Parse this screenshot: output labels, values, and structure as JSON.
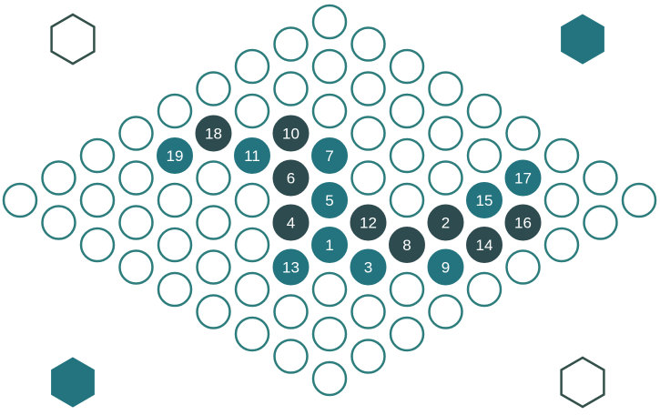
{
  "colors": {
    "empty_stroke": "#2e7d7d",
    "empty_fill": "#ffffff",
    "teal": "#23747f",
    "dark": "#2e4b4f",
    "hex_outline": "#34504a",
    "label": "#ffffff"
  },
  "hex_markers": [
    {
      "name": "hex-top-left-outline",
      "corner": "top-left",
      "style": "outline"
    },
    {
      "name": "hex-top-right-filled",
      "corner": "top-right",
      "style": "filled"
    },
    {
      "name": "hex-bottom-left-filled",
      "corner": "bottom-left",
      "style": "filled"
    },
    {
      "name": "hex-bottom-right-outline",
      "corner": "bottom-right",
      "style": "outline"
    }
  ],
  "board": {
    "size": 9,
    "stones": [
      {
        "label": "1",
        "color": "teal",
        "row": 5,
        "col": 5
      },
      {
        "label": "2",
        "color": "dark",
        "row": 6,
        "col": 3
      },
      {
        "label": "3",
        "color": "teal",
        "row": 6,
        "col": 5
      },
      {
        "label": "4",
        "color": "dark",
        "row": 4,
        "col": 5
      },
      {
        "label": "5",
        "color": "teal",
        "row": 4,
        "col": 4
      },
      {
        "label": "6",
        "color": "dark",
        "row": 3,
        "col": 4
      },
      {
        "label": "7",
        "color": "teal",
        "row": 3,
        "col": 3
      },
      {
        "label": "8",
        "color": "dark",
        "row": 6,
        "col": 4
      },
      {
        "label": "9",
        "color": "teal",
        "row": 7,
        "col": 4
      },
      {
        "label": "10",
        "color": "dark",
        "row": 2,
        "col": 3
      },
      {
        "label": "11",
        "color": "teal",
        "row": 2,
        "col": 4
      },
      {
        "label": "12",
        "color": "dark",
        "row": 5,
        "col": 4
      },
      {
        "label": "13",
        "color": "teal",
        "row": 5,
        "col": 6
      },
      {
        "label": "14",
        "color": "dark",
        "row": 7,
        "col": 3
      },
      {
        "label": "15",
        "color": "teal",
        "row": 6,
        "col": 2
      },
      {
        "label": "16",
        "color": "dark",
        "row": 7,
        "col": 2
      },
      {
        "label": "17",
        "color": "teal",
        "row": 6,
        "col": 1
      },
      {
        "label": "18",
        "color": "dark",
        "row": 1,
        "col": 4
      },
      {
        "label": "19",
        "color": "teal",
        "row": 1,
        "col": 5
      }
    ]
  }
}
